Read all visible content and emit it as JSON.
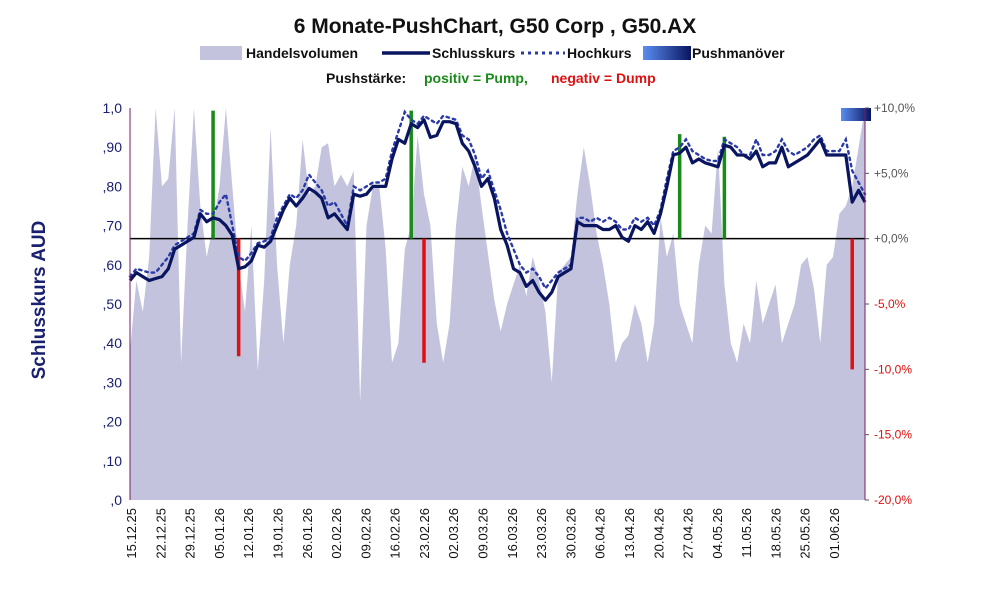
{
  "chart_data": {
    "type": "area-line",
    "title": "6 Monate-PushChart, G50 Corp , G50.AX",
    "legend": {
      "volume": "Handelsvolumen",
      "close": "Schlusskurs",
      "high": "Hochkurs",
      "push": "Pushmanöver"
    },
    "subtitle": {
      "label": "Pushstärke:",
      "positive": "positiv = Pump,",
      "negative": "negativ = Dump"
    },
    "ylabel": "Schlusskurs AUD",
    "ylim": [
      0,
      1.0
    ],
    "y_ticks": [
      "1,0",
      ",90",
      ",80",
      ",70",
      ",60",
      ",50",
      ",40",
      ",30",
      ",20",
      ",10",
      ",0"
    ],
    "y2lim": [
      -20,
      10
    ],
    "y2_ticks": [
      "+10,0%",
      "+5,0%",
      "+0,0%",
      "-5,0%",
      "-10,0%",
      "-15,0%",
      "-20,0%"
    ],
    "x_labels": [
      "15.12.25",
      "22.12.25",
      "29.12.25",
      "05.01.26",
      "12.01.26",
      "19.01.26",
      "26.01.26",
      "02.02.26",
      "09.02.26",
      "16.02.26",
      "23.02.26",
      "02.03.26",
      "09.03.26",
      "16.03.26",
      "23.03.26",
      "30.03.26",
      "06.04.26",
      "13.04.26",
      "20.04.26",
      "27.04.26",
      "04.05.26",
      "11.05.26",
      "18.05.26",
      "25.05.26",
      "01.06.26"
    ],
    "grid": true,
    "close": [
      [
        0,
        0.56
      ],
      [
        1,
        0.58
      ],
      [
        2,
        0.57
      ],
      [
        3,
        0.56
      ],
      [
        4,
        0.565
      ],
      [
        5,
        0.57
      ],
      [
        6,
        0.59
      ],
      [
        7,
        0.64
      ],
      [
        8,
        0.65
      ],
      [
        9,
        0.66
      ],
      [
        10,
        0.67
      ],
      [
        11,
        0.73
      ],
      [
        12,
        0.71
      ],
      [
        13,
        0.72
      ],
      [
        14,
        0.715
      ],
      [
        15,
        0.7
      ],
      [
        16,
        0.675
      ],
      [
        17,
        0.59
      ],
      [
        18,
        0.595
      ],
      [
        19,
        0.61
      ],
      [
        20,
        0.65
      ],
      [
        21,
        0.645
      ],
      [
        22,
        0.66
      ],
      [
        23,
        0.7
      ],
      [
        24,
        0.74
      ],
      [
        25,
        0.77
      ],
      [
        26,
        0.75
      ],
      [
        27,
        0.77
      ],
      [
        28,
        0.795
      ],
      [
        29,
        0.785
      ],
      [
        30,
        0.77
      ],
      [
        31,
        0.72
      ],
      [
        32,
        0.73
      ],
      [
        33,
        0.71
      ],
      [
        34,
        0.69
      ],
      [
        35,
        0.78
      ],
      [
        36,
        0.775
      ],
      [
        37,
        0.78
      ],
      [
        38,
        0.8
      ],
      [
        39,
        0.8
      ],
      [
        40,
        0.8
      ],
      [
        41,
        0.87
      ],
      [
        42,
        0.92
      ],
      [
        43,
        0.91
      ],
      [
        44,
        0.96
      ],
      [
        45,
        0.95
      ],
      [
        46,
        0.97
      ],
      [
        47,
        0.925
      ],
      [
        48,
        0.93
      ],
      [
        49,
        0.965
      ],
      [
        50,
        0.965
      ],
      [
        51,
        0.96
      ],
      [
        52,
        0.91
      ],
      [
        53,
        0.89
      ],
      [
        54,
        0.85
      ],
      [
        55,
        0.8
      ],
      [
        56,
        0.82
      ],
      [
        57,
        0.77
      ],
      [
        58,
        0.69
      ],
      [
        59,
        0.65
      ],
      [
        60,
        0.59
      ],
      [
        61,
        0.58
      ],
      [
        62,
        0.545
      ],
      [
        63,
        0.56
      ],
      [
        64,
        0.53
      ],
      [
        65,
        0.51
      ],
      [
        66,
        0.53
      ],
      [
        67,
        0.57
      ],
      [
        68,
        0.58
      ],
      [
        69,
        0.59
      ],
      [
        70,
        0.71
      ],
      [
        71,
        0.7
      ],
      [
        72,
        0.7
      ],
      [
        73,
        0.7
      ],
      [
        74,
        0.69
      ],
      [
        75,
        0.69
      ],
      [
        76,
        0.7
      ],
      [
        77,
        0.67
      ],
      [
        78,
        0.66
      ],
      [
        79,
        0.7
      ],
      [
        80,
        0.69
      ],
      [
        81,
        0.71
      ],
      [
        82,
        0.68
      ],
      [
        83,
        0.73
      ],
      [
        84,
        0.8
      ],
      [
        85,
        0.88
      ],
      [
        86,
        0.885
      ],
      [
        87,
        0.9
      ],
      [
        88,
        0.86
      ],
      [
        89,
        0.87
      ],
      [
        90,
        0.86
      ],
      [
        91,
        0.855
      ],
      [
        92,
        0.85
      ],
      [
        93,
        0.905
      ],
      [
        94,
        0.9
      ],
      [
        95,
        0.88
      ],
      [
        96,
        0.88
      ],
      [
        97,
        0.87
      ],
      [
        98,
        0.89
      ],
      [
        99,
        0.85
      ],
      [
        100,
        0.86
      ],
      [
        101,
        0.86
      ],
      [
        102,
        0.9
      ],
      [
        103,
        0.85
      ],
      [
        104,
        0.86
      ],
      [
        105,
        0.87
      ],
      [
        106,
        0.88
      ],
      [
        107,
        0.9
      ],
      [
        108,
        0.92
      ],
      [
        109,
        0.88
      ],
      [
        110,
        0.88
      ],
      [
        111,
        0.88
      ],
      [
        112,
        0.88
      ],
      [
        113,
        0.76
      ],
      [
        114,
        0.79
      ],
      [
        115,
        0.76
      ]
    ],
    "high": [
      [
        0,
        0.57
      ],
      [
        1,
        0.59
      ],
      [
        2,
        0.585
      ],
      [
        3,
        0.58
      ],
      [
        4,
        0.58
      ],
      [
        5,
        0.6
      ],
      [
        6,
        0.62
      ],
      [
        7,
        0.65
      ],
      [
        8,
        0.66
      ],
      [
        9,
        0.67
      ],
      [
        10,
        0.68
      ],
      [
        11,
        0.74
      ],
      [
        12,
        0.73
      ],
      [
        13,
        0.73
      ],
      [
        14,
        0.76
      ],
      [
        15,
        0.78
      ],
      [
        16,
        0.7
      ],
      [
        17,
        0.62
      ],
      [
        18,
        0.61
      ],
      [
        19,
        0.63
      ],
      [
        20,
        0.655
      ],
      [
        21,
        0.66
      ],
      [
        22,
        0.67
      ],
      [
        23,
        0.72
      ],
      [
        24,
        0.75
      ],
      [
        25,
        0.78
      ],
      [
        26,
        0.77
      ],
      [
        27,
        0.79
      ],
      [
        28,
        0.83
      ],
      [
        29,
        0.81
      ],
      [
        30,
        0.79
      ],
      [
        31,
        0.75
      ],
      [
        32,
        0.76
      ],
      [
        33,
        0.73
      ],
      [
        34,
        0.7
      ],
      [
        35,
        0.8
      ],
      [
        36,
        0.79
      ],
      [
        37,
        0.8
      ],
      [
        38,
        0.81
      ],
      [
        39,
        0.81
      ],
      [
        40,
        0.82
      ],
      [
        41,
        0.89
      ],
      [
        42,
        0.94
      ],
      [
        43,
        0.99
      ],
      [
        44,
        0.97
      ],
      [
        45,
        0.96
      ],
      [
        46,
        0.98
      ],
      [
        47,
        0.97
      ],
      [
        48,
        0.96
      ],
      [
        49,
        0.98
      ],
      [
        50,
        0.975
      ],
      [
        51,
        0.97
      ],
      [
        52,
        0.93
      ],
      [
        53,
        0.92
      ],
      [
        54,
        0.88
      ],
      [
        55,
        0.82
      ],
      [
        56,
        0.84
      ],
      [
        57,
        0.79
      ],
      [
        58,
        0.74
      ],
      [
        59,
        0.68
      ],
      [
        60,
        0.64
      ],
      [
        61,
        0.6
      ],
      [
        62,
        0.58
      ],
      [
        63,
        0.59
      ],
      [
        64,
        0.57
      ],
      [
        65,
        0.54
      ],
      [
        66,
        0.56
      ],
      [
        67,
        0.58
      ],
      [
        68,
        0.59
      ],
      [
        69,
        0.6
      ],
      [
        70,
        0.72
      ],
      [
        71,
        0.72
      ],
      [
        72,
        0.71
      ],
      [
        73,
        0.72
      ],
      [
        74,
        0.71
      ],
      [
        75,
        0.72
      ],
      [
        76,
        0.71
      ],
      [
        77,
        0.69
      ],
      [
        78,
        0.69
      ],
      [
        79,
        0.72
      ],
      [
        80,
        0.71
      ],
      [
        81,
        0.72
      ],
      [
        82,
        0.7
      ],
      [
        83,
        0.74
      ],
      [
        84,
        0.82
      ],
      [
        85,
        0.89
      ],
      [
        86,
        0.9
      ],
      [
        87,
        0.92
      ],
      [
        88,
        0.89
      ],
      [
        89,
        0.88
      ],
      [
        90,
        0.87
      ],
      [
        91,
        0.865
      ],
      [
        92,
        0.865
      ],
      [
        93,
        0.92
      ],
      [
        94,
        0.91
      ],
      [
        95,
        0.9
      ],
      [
        96,
        0.88
      ],
      [
        97,
        0.88
      ],
      [
        98,
        0.92
      ],
      [
        99,
        0.88
      ],
      [
        100,
        0.88
      ],
      [
        101,
        0.89
      ],
      [
        102,
        0.92
      ],
      [
        103,
        0.89
      ],
      [
        104,
        0.88
      ],
      [
        105,
        0.89
      ],
      [
        106,
        0.9
      ],
      [
        107,
        0.92
      ],
      [
        108,
        0.93
      ],
      [
        109,
        0.89
      ],
      [
        110,
        0.89
      ],
      [
        111,
        0.89
      ],
      [
        112,
        0.92
      ],
      [
        113,
        0.84
      ],
      [
        114,
        0.81
      ],
      [
        115,
        0.78
      ]
    ],
    "volume": [
      [
        0,
        0.38
      ],
      [
        1,
        0.56
      ],
      [
        2,
        0.48
      ],
      [
        3,
        0.62
      ],
      [
        4,
        1.0
      ],
      [
        5,
        0.8
      ],
      [
        6,
        0.82
      ],
      [
        7,
        1.0
      ],
      [
        8,
        0.35
      ],
      [
        9,
        0.7
      ],
      [
        10,
        1.0
      ],
      [
        11,
        0.75
      ],
      [
        12,
        0.62
      ],
      [
        13,
        0.7
      ],
      [
        14,
        0.8
      ],
      [
        15,
        1.0
      ],
      [
        16,
        0.8
      ],
      [
        17,
        0.6
      ],
      [
        18,
        0.48
      ],
      [
        19,
        0.7
      ],
      [
        20,
        0.33
      ],
      [
        21,
        0.56
      ],
      [
        22,
        0.95
      ],
      [
        23,
        0.6
      ],
      [
        24,
        0.4
      ],
      [
        25,
        0.6
      ],
      [
        26,
        0.7
      ],
      [
        27,
        0.92
      ],
      [
        28,
        0.78
      ],
      [
        29,
        0.8
      ],
      [
        30,
        0.9
      ],
      [
        31,
        0.91
      ],
      [
        32,
        0.8
      ],
      [
        33,
        0.83
      ],
      [
        34,
        0.8
      ],
      [
        35,
        0.84
      ],
      [
        36,
        0.25
      ],
      [
        37,
        0.7
      ],
      [
        38,
        0.8
      ],
      [
        39,
        0.8
      ],
      [
        40,
        0.64
      ],
      [
        41,
        0.35
      ],
      [
        42,
        0.4
      ],
      [
        43,
        0.64
      ],
      [
        44,
        0.7
      ],
      [
        45,
        0.93
      ],
      [
        46,
        0.78
      ],
      [
        47,
        0.7
      ],
      [
        48,
        0.45
      ],
      [
        49,
        0.35
      ],
      [
        50,
        0.45
      ],
      [
        51,
        0.7
      ],
      [
        52,
        0.85
      ],
      [
        53,
        0.8
      ],
      [
        54,
        0.88
      ],
      [
        55,
        0.75
      ],
      [
        56,
        0.63
      ],
      [
        57,
        0.51
      ],
      [
        58,
        0.43
      ],
      [
        59,
        0.5
      ],
      [
        60,
        0.55
      ],
      [
        61,
        0.6
      ],
      [
        62,
        0.52
      ],
      [
        63,
        0.62
      ],
      [
        64,
        0.56
      ],
      [
        65,
        0.48
      ],
      [
        66,
        0.3
      ],
      [
        67,
        0.58
      ],
      [
        68,
        0.6
      ],
      [
        69,
        0.62
      ],
      [
        70,
        0.78
      ],
      [
        71,
        0.9
      ],
      [
        72,
        0.8
      ],
      [
        73,
        0.68
      ],
      [
        74,
        0.6
      ],
      [
        75,
        0.5
      ],
      [
        76,
        0.35
      ],
      [
        77,
        0.4
      ],
      [
        78,
        0.42
      ],
      [
        79,
        0.5
      ],
      [
        80,
        0.45
      ],
      [
        81,
        0.35
      ],
      [
        82,
        0.45
      ],
      [
        83,
        0.72
      ],
      [
        84,
        0.62
      ],
      [
        85,
        0.68
      ],
      [
        86,
        0.5
      ],
      [
        87,
        0.45
      ],
      [
        88,
        0.4
      ],
      [
        89,
        0.6
      ],
      [
        90,
        0.7
      ],
      [
        91,
        0.68
      ],
      [
        92,
        0.9
      ],
      [
        93,
        0.55
      ],
      [
        94,
        0.4
      ],
      [
        95,
        0.35
      ],
      [
        96,
        0.45
      ],
      [
        97,
        0.4
      ],
      [
        98,
        0.56
      ],
      [
        99,
        0.45
      ],
      [
        100,
        0.5
      ],
      [
        101,
        0.55
      ],
      [
        102,
        0.4
      ],
      [
        103,
        0.45
      ],
      [
        104,
        0.5
      ],
      [
        105,
        0.6
      ],
      [
        106,
        0.62
      ],
      [
        107,
        0.54
      ],
      [
        108,
        0.4
      ],
      [
        109,
        0.6
      ],
      [
        110,
        0.62
      ],
      [
        111,
        0.73
      ],
      [
        112,
        0.75
      ],
      [
        113,
        0.8
      ],
      [
        114,
        0.9
      ],
      [
        115,
        1.0
      ]
    ],
    "pushes": [
      {
        "x": 13,
        "value": 9.8,
        "color": "#1a8a1a"
      },
      {
        "x": 17,
        "value": -9.0,
        "color": "#e01010"
      },
      {
        "x": 44,
        "value": 9.8,
        "color": "#1a8a1a"
      },
      {
        "x": 46,
        "value": -9.5,
        "color": "#e01010"
      },
      {
        "x": 86,
        "value": 8.0,
        "color": "#1a8a1a"
      },
      {
        "x": 93,
        "value": 7.8,
        "color": "#1a8a1a"
      },
      {
        "x": 113,
        "value": -10.0,
        "color": "#e01010"
      }
    ],
    "push_marker": {
      "x": 115,
      "value": 10.0
    },
    "colors": {
      "volume": "#c3c3de",
      "close": "#0a1560",
      "high": "#2a3aa8",
      "axis_text": "#1a2070",
      "neg_tick": "#dd1111",
      "positive": "#1a8a1a",
      "negative": "#dd1111"
    }
  }
}
